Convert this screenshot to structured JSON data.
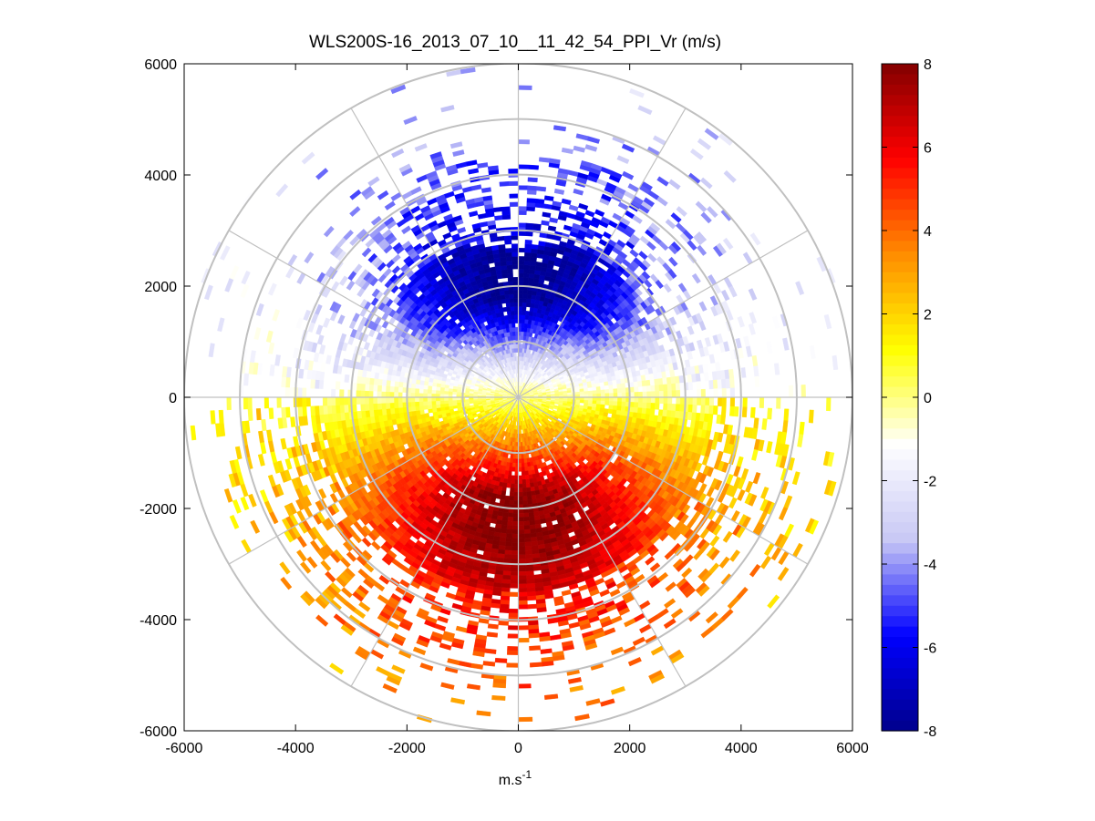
{
  "chart_data": {
    "type": "heatmap",
    "subtype": "polar-ppi",
    "title": "WLS200S-16_2013_07_10__11_42_54_PPI_Vr (m/s)",
    "xlabel": "m.s",
    "xlabel_superscript": "-1",
    "ylabel": "",
    "xlim": [
      -6000,
      6000
    ],
    "ylim": [
      -6000,
      6000
    ],
    "xticks": [
      -6000,
      -4000,
      -2000,
      0,
      2000,
      4000,
      6000
    ],
    "yticks": [
      6000,
      4000,
      2000,
      0,
      -2000,
      -4000,
      -6000
    ],
    "xtick_labels": [
      "-6000",
      "-4000",
      "-2000",
      "0",
      "2000",
      "4000",
      "6000"
    ],
    "ytick_labels": [
      "6000",
      "4000",
      "2000",
      "0",
      "-2000",
      "-4000",
      "-6000"
    ],
    "polar_grid": {
      "ring_radii": [
        1000,
        2000,
        3000,
        4000,
        5000,
        6000
      ],
      "spoke_angles_deg": [
        0,
        30,
        60,
        90,
        120,
        150,
        180,
        210,
        240,
        270,
        300,
        330
      ]
    },
    "colorbar": {
      "label": "Vr (m/s)",
      "range": [
        -8,
        8
      ],
      "ticks": [
        8,
        6,
        4,
        2,
        0,
        -2,
        -4,
        -6,
        -8
      ],
      "tick_labels": [
        "8",
        "6",
        "4",
        "2",
        "0",
        "-2",
        "-4",
        "-6",
        "-8"
      ],
      "colormap": [
        "#00008c",
        "#0000ff",
        "#c8c8f5",
        "#ffffff",
        "#ffff00",
        "#ff8c00",
        "#ff0000",
        "#820000"
      ]
    },
    "field_description": {
      "positive_velocity_sector_deg": [
        90,
        270
      ],
      "negative_velocity_sector_deg": [
        -90,
        90
      ],
      "max_positive_vr": 8,
      "max_negative_vr": -8,
      "peak_positive_azimuth_deg": 180,
      "peak_negative_azimuth_deg": 0,
      "core_radius_m": 3500,
      "outer_radius_m": 6000
    }
  }
}
